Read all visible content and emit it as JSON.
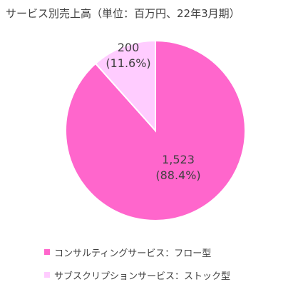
{
  "chart_data": {
    "type": "pie",
    "title": "サービス別売上高（単位：百万円、22年3月期）",
    "categories": [
      "コンサルティングサービス：フロー型",
      "サブスクリプションサービス：ストック型"
    ],
    "values": [
      1523,
      200
    ],
    "value_labels": [
      "1,523",
      "200"
    ],
    "percent_labels": [
      "(88.4%)",
      "(11.6%)"
    ],
    "colors": [
      "#ff66cc",
      "#ffccff"
    ],
    "slice_border": "#ffffff",
    "legend_position": "bottom-left"
  }
}
